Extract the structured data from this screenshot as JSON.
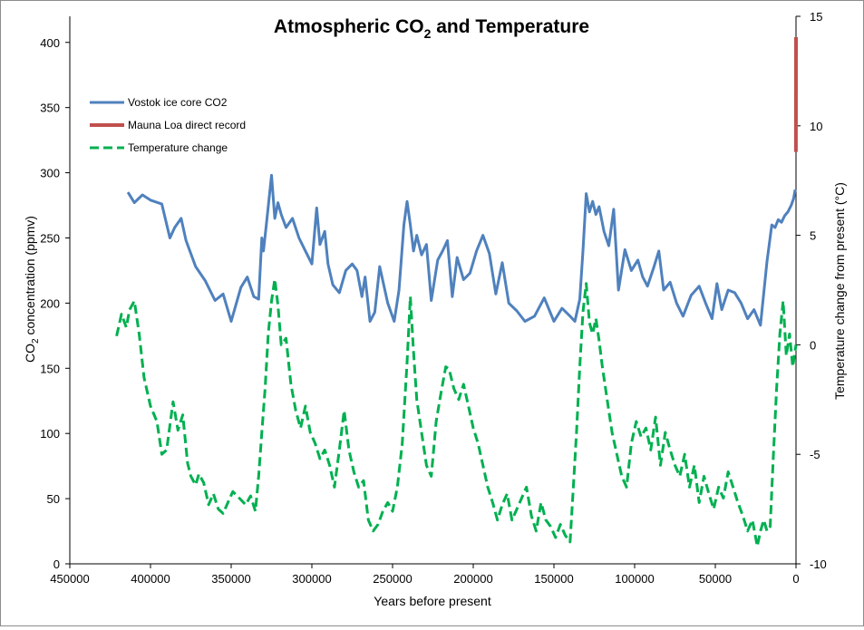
{
  "chart_data": {
    "type": "line",
    "title": "Atmospheric CO",
    "title_sub": "2",
    "title_suffix": " and Temperature",
    "xlabel": "Years before present",
    "ylabel_left_pre": "CO",
    "ylabel_left_sub": "2",
    "ylabel_left_post": " concentration (ppmv)",
    "ylabel_right": "Temperature change from present (°C)",
    "xlim": [
      450000,
      0
    ],
    "ylim_left": [
      0,
      420
    ],
    "ylim_right": [
      -10,
      15
    ],
    "x_ticks": [
      "450000",
      "400000",
      "350000",
      "300000",
      "250000",
      "200000",
      "150000",
      "100000",
      "50000",
      "0"
    ],
    "y_left_ticks": [
      "0",
      "50",
      "100",
      "150",
      "200",
      "250",
      "300",
      "350",
      "400"
    ],
    "y_right_ticks": [
      "-10",
      "-5",
      "0",
      "5",
      "10",
      "15"
    ],
    "legend": [
      {
        "label": "Vostok ice core CO2",
        "color": "#4f81bd",
        "style": "solid"
      },
      {
        "label": "Mauna Loa direct record",
        "color": "#c0504d",
        "style": "solid"
      },
      {
        "label": "Temperature change",
        "color": "#00b050",
        "style": "dashed"
      }
    ],
    "series": [
      {
        "name": "Vostok ice core CO2",
        "axis": "left",
        "color": "#4f81bd",
        "x": [
          414000,
          410000,
          405000,
          400000,
          393000,
          388000,
          385000,
          381000,
          378000,
          372000,
          366000,
          360000,
          355000,
          350000,
          344000,
          340000,
          336000,
          333000,
          331000,
          330000,
          328000,
          325000,
          323000,
          321000,
          319000,
          316000,
          312000,
          308000,
          304000,
          300000,
          297000,
          295000,
          292000,
          290000,
          287000,
          283000,
          279000,
          275000,
          272000,
          269000,
          267000,
          264000,
          261000,
          258000,
          253000,
          249000,
          246000,
          243000,
          241000,
          239000,
          237000,
          235000,
          232000,
          229000,
          226000,
          222000,
          219000,
          216000,
          213000,
          210000,
          206000,
          202000,
          198000,
          194000,
          190000,
          186000,
          182000,
          178000,
          173000,
          168000,
          162000,
          156000,
          150000,
          145000,
          140000,
          137000,
          134000,
          132000,
          130000,
          128000,
          126000,
          124000,
          122000,
          119000,
          116000,
          113000,
          110000,
          106000,
          102000,
          98000,
          95000,
          92000,
          88000,
          85000,
          82000,
          78000,
          74000,
          70000,
          65000,
          60000,
          56000,
          52000,
          49000,
          46000,
          42000,
          38000,
          34000,
          30000,
          26000,
          22000,
          18000,
          15000,
          13000,
          11000,
          9000,
          7000,
          5000,
          3000,
          1500,
          500
        ],
        "values": [
          285,
          277,
          283,
          279,
          276,
          250,
          258,
          265,
          248,
          228,
          217,
          202,
          207,
          186,
          212,
          220,
          205,
          203,
          250,
          240,
          263,
          298,
          265,
          277,
          268,
          258,
          265,
          250,
          240,
          230,
          273,
          245,
          255,
          230,
          214,
          208,
          225,
          230,
          225,
          205,
          220,
          186,
          193,
          228,
          200,
          186,
          210,
          260,
          278,
          260,
          240,
          252,
          237,
          245,
          202,
          233,
          240,
          248,
          205,
          235,
          218,
          223,
          240,
          252,
          238,
          207,
          231,
          200,
          194,
          186,
          190,
          204,
          186,
          196,
          190,
          186,
          203,
          240,
          284,
          270,
          278,
          268,
          274,
          255,
          244,
          272,
          210,
          241,
          225,
          233,
          220,
          213,
          228,
          240,
          210,
          216,
          200,
          190,
          206,
          213,
          200,
          188,
          215,
          195,
          210,
          208,
          200,
          188,
          195,
          183,
          232,
          260,
          258,
          264,
          262,
          267,
          270,
          275,
          280,
          287
        ]
      },
      {
        "name": "Mauna Loa direct record",
        "axis": "left",
        "color": "#c0504d",
        "x": [
          30,
          0
        ],
        "values": [
          316,
          404
        ]
      },
      {
        "name": "Temperature change",
        "axis": "right",
        "color": "#00b050",
        "x": [
          421000,
          418000,
          415000,
          413000,
          410000,
          407000,
          404000,
          400000,
          396000,
          393000,
          390000,
          386000,
          383000,
          380000,
          377000,
          375000,
          372000,
          370000,
          367000,
          364000,
          361000,
          358000,
          355000,
          352000,
          349000,
          345000,
          341000,
          338000,
          335000,
          333000,
          331000,
          329000,
          327000,
          325000,
          323000,
          321000,
          319000,
          316000,
          313000,
          310000,
          307000,
          304000,
          301000,
          298000,
          295000,
          292000,
          289000,
          286000,
          283000,
          280000,
          277000,
          274000,
          271000,
          268000,
          265000,
          262000,
          259000,
          256000,
          253000,
          250000,
          247000,
          244000,
          241000,
          239000,
          237000,
          235000,
          232000,
          229000,
          226000,
          223000,
          220000,
          217000,
          215000,
          212000,
          209000,
          206000,
          203000,
          200000,
          197000,
          194000,
          191000,
          188000,
          185000,
          182000,
          179000,
          176000,
          173000,
          170000,
          167000,
          164000,
          161000,
          158000,
          155000,
          152000,
          149000,
          146000,
          143000,
          140000,
          138000,
          136000,
          134000,
          132000,
          130000,
          128000,
          126000,
          124000,
          122000,
          120000,
          117000,
          114000,
          111000,
          108000,
          105000,
          102000,
          99000,
          96000,
          93000,
          90000,
          87000,
          84000,
          81000,
          78000,
          75000,
          72000,
          69000,
          66000,
          63000,
          60000,
          57000,
          54000,
          51000,
          48000,
          45000,
          42000,
          39000,
          36000,
          33000,
          30000,
          27000,
          24000,
          22000,
          20000,
          18000,
          16000,
          14000,
          12000,
          10000,
          8000,
          6000,
          4000,
          2000,
          0
        ],
        "values": [
          0.4,
          1.4,
          0.8,
          1.6,
          2.0,
          0.5,
          -1.5,
          -2.8,
          -3.5,
          -5.0,
          -4.8,
          -2.6,
          -3.9,
          -3.2,
          -5.4,
          -6.0,
          -6.4,
          -5.9,
          -6.3,
          -7.3,
          -6.8,
          -7.5,
          -7.7,
          -7.2,
          -6.7,
          -7.0,
          -7.3,
          -6.9,
          -7.6,
          -6.0,
          -4.0,
          -2.0,
          0.5,
          2.0,
          3.0,
          1.8,
          0.0,
          0.3,
          -1.8,
          -3.0,
          -3.8,
          -2.8,
          -4.0,
          -4.5,
          -5.2,
          -4.8,
          -5.5,
          -6.5,
          -4.8,
          -3.0,
          -4.8,
          -5.8,
          -6.5,
          -6.2,
          -8.0,
          -8.5,
          -8.2,
          -7.6,
          -7.2,
          -7.6,
          -6.5,
          -4.5,
          -0.8,
          2.2,
          -0.3,
          -2.5,
          -4.0,
          -5.5,
          -6.0,
          -3.5,
          -2.2,
          -1.0,
          -1.1,
          -2.0,
          -2.5,
          -1.8,
          -2.8,
          -3.8,
          -4.5,
          -5.5,
          -6.5,
          -7.2,
          -8.0,
          -7.3,
          -6.8,
          -8.0,
          -7.5,
          -7.0,
          -6.5,
          -7.8,
          -8.5,
          -7.2,
          -8.0,
          -8.3,
          -8.8,
          -8.2,
          -8.7,
          -9.0,
          -6.5,
          -4.0,
          -1.0,
          1.5,
          2.8,
          1.0,
          0.5,
          1.2,
          0.2,
          -1.0,
          -2.5,
          -4.0,
          -5.0,
          -6.0,
          -6.5,
          -4.5,
          -3.5,
          -4.2,
          -3.8,
          -4.8,
          -3.3,
          -5.5,
          -4.0,
          -4.8,
          -5.5,
          -6.0,
          -5.0,
          -6.5,
          -5.5,
          -7.2,
          -6.0,
          -6.8,
          -7.5,
          -6.5,
          -7.0,
          -5.8,
          -6.5,
          -7.2,
          -7.8,
          -8.5,
          -8.0,
          -9.2,
          -8.5,
          -8.0,
          -8.5,
          -8.3,
          -5.0,
          -2.0,
          0.5,
          2.0,
          -0.5,
          0.5,
          -1.0,
          0.0
        ]
      }
    ]
  }
}
